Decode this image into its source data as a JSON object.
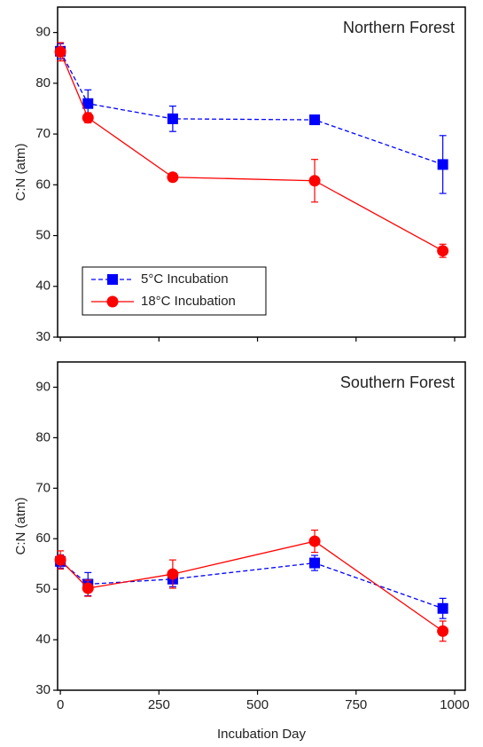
{
  "chart_data": [
    {
      "type": "line",
      "title": "Northern Forest",
      "ylabel": "C:N (atm)",
      "xlim": [
        -7,
        1027
      ],
      "xticks": [
        0,
        250,
        500,
        750,
        1000
      ],
      "ylim": [
        30,
        95
      ],
      "yticks": [
        30,
        40,
        50,
        60,
        70,
        80,
        90
      ],
      "legend": "lower left",
      "x": [
        0,
        70,
        285,
        645,
        970
      ],
      "series": [
        {
          "name": "5°C Incubation",
          "color": "#0000ff",
          "marker": "square",
          "linestyle": "dashed",
          "values": [
            86.3,
            76,
            73,
            72.8,
            64
          ],
          "errors": [
            1.5,
            2.7,
            2.5,
            0.8,
            5.7
          ]
        },
        {
          "name": "18°C Incubation",
          "color": "#ff0000",
          "marker": "circle",
          "linestyle": "solid",
          "values": [
            86.2,
            73.2,
            61.5,
            60.8,
            47
          ],
          "errors": [
            1.8,
            1,
            0.8,
            4.2,
            1.3
          ]
        }
      ]
    },
    {
      "type": "line",
      "title": "Southern Forest",
      "ylabel": "C:N (atm)",
      "xlabel": "Incubation Day",
      "xlim": [
        -7,
        1027
      ],
      "xticks": [
        0,
        250,
        500,
        750,
        1000
      ],
      "ylim": [
        30,
        95
      ],
      "yticks": [
        30,
        40,
        50,
        60,
        70,
        80,
        90
      ],
      "x": [
        0,
        70,
        285,
        645,
        970
      ],
      "series": [
        {
          "color": "#0000ff",
          "marker": "square",
          "linestyle": "dashed",
          "values": [
            55.5,
            51,
            52,
            55.2,
            46.2
          ],
          "errors": [
            1.3,
            2.3,
            1.5,
            1.5,
            2
          ]
        },
        {
          "color": "#ff0000",
          "marker": "circle",
          "linestyle": "solid",
          "values": [
            55.8,
            50.2,
            53,
            59.5,
            41.7
          ],
          "errors": [
            1.8,
            1.6,
            2.8,
            2.2,
            2
          ]
        }
      ]
    }
  ]
}
